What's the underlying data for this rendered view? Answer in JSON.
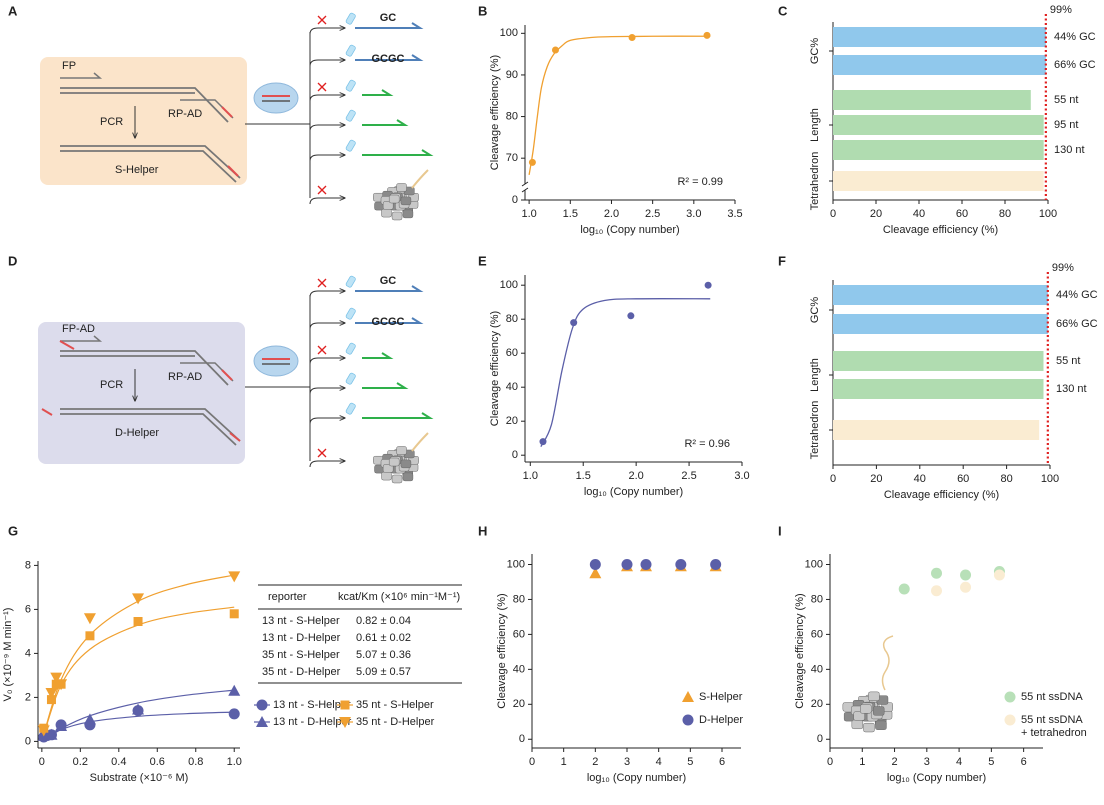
{
  "panel_labels": [
    "A",
    "B",
    "C",
    "D",
    "E",
    "F",
    "G",
    "H",
    "I"
  ],
  "diagrams": [
    {
      "labels": [
        "FP",
        "RP-AD",
        "PCR",
        "S-Helper"
      ],
      "branches": [
        "GC",
        "GCGC"
      ]
    },
    {
      "labels": [
        "FP-AD",
        "RP-AD",
        "PCR",
        "D-Helper"
      ],
      "branches": [
        "GC",
        "GCGC"
      ]
    }
  ],
  "chart_data": [
    {
      "type": "line",
      "color": "#f0a030",
      "x": [
        1.04,
        1.32,
        2.25,
        3.16
      ],
      "values": [
        69,
        96,
        99,
        99.5
      ],
      "fit": {
        "x": [
          1.0,
          1.05,
          1.1,
          1.15,
          1.22,
          1.3,
          1.4,
          1.5,
          1.75,
          2.0,
          2.5,
          3.2
        ],
        "values": [
          66,
          72,
          80,
          87,
          92,
          95,
          97,
          98.3,
          99,
          99.2,
          99.3,
          99.3
        ]
      },
      "annotation": "R² = 0.99",
      "xlabel": "log₁₀ (Copy number)",
      "ylabel": "Cleavage efficiency (%)",
      "xlim": [
        0.95,
        3.5
      ],
      "xticks": [
        {
          "value": 1,
          "label": "1.0"
        },
        1.5,
        {
          "value": 2,
          "label": "2.0"
        },
        2.5,
        {
          "value": 3,
          "label": "3.0"
        },
        3.5
      ],
      "ylim": [
        0,
        102
      ],
      "ybreak": [
        0,
        65
      ],
      "yticks": [
        0,
        70,
        80,
        90,
        100
      ]
    },
    {
      "type": "bar",
      "orientation": "horizontal",
      "categories": [
        "44% GC",
        "66% GC",
        "55 nt",
        "95 nt",
        "130 nt",
        null
      ],
      "values": [
        99,
        99,
        92,
        98,
        98,
        98
      ],
      "colors": [
        "#90c8ec",
        "#90c8ec",
        "#b0dcb0",
        "#b0dcb0",
        "#b0dcb0",
        "#faecd2"
      ],
      "groups": [
        "GC%",
        "Length",
        "Tetrahedron"
      ],
      "refline": 99,
      "refline_label": "99%",
      "refline_color": "#e02020",
      "xlabel": "Cleavage efficiency (%)",
      "xlim": [
        0,
        100
      ],
      "xticks": [
        0,
        20,
        40,
        60,
        80,
        100
      ]
    },
    {
      "type": "line",
      "color": "#5b5fa8",
      "x": [
        1.12,
        1.41,
        1.95,
        2.68
      ],
      "values": [
        8,
        78,
        82,
        100
      ],
      "fit": {
        "x": [
          1.1,
          1.2,
          1.3,
          1.4,
          1.5,
          1.7,
          2.0,
          2.7
        ],
        "values": [
          5,
          18,
          50,
          75,
          86,
          91,
          92,
          92
        ]
      },
      "annotation": "R² = 0.96",
      "xlabel": "log₁₀ (Copy number)",
      "ylabel": "Cleavage efficiency (%)",
      "xlim": [
        0.95,
        3.0
      ],
      "xticks": [
        {
          "value": 1,
          "label": "1.0"
        },
        1.5,
        {
          "value": 2,
          "label": "2.0"
        },
        2.5,
        {
          "value": 3,
          "label": "3.0"
        }
      ],
      "ylim": [
        -4,
        106
      ],
      "yticks": [
        0,
        20,
        40,
        60,
        80,
        100
      ]
    },
    {
      "type": "bar",
      "orientation": "horizontal",
      "categories": [
        "44% GC",
        "66% GC",
        "55 nt",
        "130 nt",
        null
      ],
      "values": [
        99,
        99,
        97,
        97,
        95
      ],
      "colors": [
        "#90c8ec",
        "#90c8ec",
        "#b0dcb0",
        "#b0dcb0",
        "#faecd2"
      ],
      "groups": [
        "GC%",
        "Length",
        "Tetrahedron"
      ],
      "refline": 99,
      "refline_label": "99%",
      "refline_color": "#e02020",
      "xlabel": "Cleavage efficiency (%)",
      "xlim": [
        0,
        100
      ],
      "xticks": [
        0,
        20,
        40,
        60,
        80,
        100
      ]
    },
    {
      "type": "scatter",
      "xlabel": "Substrate (×10⁻⁶ M)",
      "ylabel": "V₀ (×10⁻⁹ M min⁻¹)",
      "xlim": [
        -0.02,
        1.03
      ],
      "xticks": [
        0,
        0.2,
        0.4,
        0.6,
        0.8,
        {
          "value": 1,
          "label": "1.0"
        }
      ],
      "ylim": [
        -0.3,
        8.2
      ],
      "yticks": [
        0,
        2,
        4,
        6,
        8
      ],
      "series": [
        {
          "name": "13 nt - S-Helper",
          "color": "#5b5fa8",
          "marker": "circle",
          "x": [
            0.01,
            0.05,
            0.1,
            0.25,
            0.5,
            1.0
          ],
          "values": [
            0.2,
            0.3,
            0.75,
            0.75,
            1.4,
            1.25
          ],
          "fit": {
            "x": [
              0,
              0.1,
              0.25,
              0.5,
              0.75,
              1.0
            ],
            "values": [
              0,
              0.53,
              0.89,
              1.14,
              1.26,
              1.33
            ]
          }
        },
        {
          "name": "13 nt - D-Helper",
          "color": "#5b5fa8",
          "marker": "triangle-up",
          "x": [
            0.01,
            0.05,
            0.1,
            0.25,
            0.5,
            1.0
          ],
          "values": [
            0.25,
            0.3,
            0.7,
            1.0,
            1.45,
            2.3
          ],
          "fit": {
            "x": [
              0,
              0.1,
              0.25,
              0.5,
              0.75,
              1.0
            ],
            "values": [
              0,
              0.58,
              1.17,
              1.75,
              2.1,
              2.33
            ]
          }
        },
        {
          "name": "35 nt - S-Helper",
          "color": "#f0a030",
          "marker": "square",
          "x": [
            0.01,
            0.05,
            0.075,
            0.1,
            0.25,
            0.5,
            1.0
          ],
          "values": [
            0.6,
            1.9,
            2.6,
            2.6,
            4.8,
            5.45,
            5.8
          ],
          "fit": {
            "x": [
              0,
              0.1,
              0.25,
              0.5,
              0.75,
              1.0
            ],
            "values": [
              0,
              2.57,
              4.19,
              5.29,
              5.81,
              6.1
            ]
          }
        },
        {
          "name": "35 nt - D-Helper",
          "color": "#f0a030",
          "marker": "triangle-down",
          "x": [
            0.01,
            0.05,
            0.075,
            0.1,
            0.25,
            0.5,
            1.0
          ],
          "values": [
            0.5,
            2.2,
            2.9,
            2.6,
            5.6,
            6.5,
            7.5
          ],
          "fit": {
            "x": [
              0,
              0.1,
              0.25,
              0.5,
              0.75,
              1.0
            ],
            "values": [
              0,
              2.8,
              4.84,
              6.37,
              7.12,
              7.56
            ]
          }
        }
      ],
      "table": {
        "header": [
          "reporter",
          "kcat/Km (×10⁶ min⁻¹M⁻¹)"
        ],
        "rows": [
          [
            "13 nt - S-Helper",
            "0.82 ± 0.04"
          ],
          [
            "13 nt - D-Helper",
            "0.61 ± 0.02"
          ],
          [
            "35 nt - S-Helper",
            "5.07 ± 0.36"
          ],
          [
            "35 nt - D-Helper",
            "5.09 ± 0.57"
          ]
        ]
      }
    },
    {
      "type": "scatter",
      "xlabel": "log₁₀ (Copy number)",
      "ylabel": "Cleavage efficiency (%)",
      "xlim": [
        0,
        6.6
      ],
      "xticks": [
        0,
        1,
        2,
        3,
        4,
        5,
        6
      ],
      "ylim": [
        -5,
        106
      ],
      "yticks": [
        0,
        20,
        40,
        60,
        80,
        100
      ],
      "series": [
        {
          "name": "S-Helper",
          "color": "#f0a030",
          "marker": "triangle-up",
          "x": [
            2,
            3,
            3.6,
            4.7,
            5.8
          ],
          "values": [
            95,
            99,
            99,
            99,
            99
          ]
        },
        {
          "name": "D-Helper",
          "color": "#5b5fa8",
          "marker": "circle",
          "x": [
            2,
            3,
            3.6,
            4.7,
            5.8
          ],
          "values": [
            100,
            100,
            100,
            100,
            100
          ]
        }
      ]
    },
    {
      "type": "scatter",
      "xlabel": "log₁₀ (Copy number)",
      "ylabel": "Cleavage efficiency (%)",
      "xlim": [
        0,
        6.6
      ],
      "xticks": [
        0,
        1,
        2,
        3,
        4,
        5,
        6
      ],
      "ylim": [
        -5,
        106
      ],
      "yticks": [
        0,
        20,
        40,
        60,
        80,
        100
      ],
      "series": [
        {
          "name": "55 nt ssDNA",
          "color": "#b8e0b8",
          "marker": "circle",
          "x": [
            2.3,
            3.3,
            4.2,
            5.25
          ],
          "values": [
            86,
            95,
            94,
            96
          ]
        },
        {
          "name": "55 nt ssDNA + tetrahedron",
          "color": "#faecd2",
          "marker": "circle",
          "x": [
            3.3,
            4.2,
            5.25
          ],
          "values": [
            85,
            87,
            94
          ]
        }
      ]
    }
  ]
}
